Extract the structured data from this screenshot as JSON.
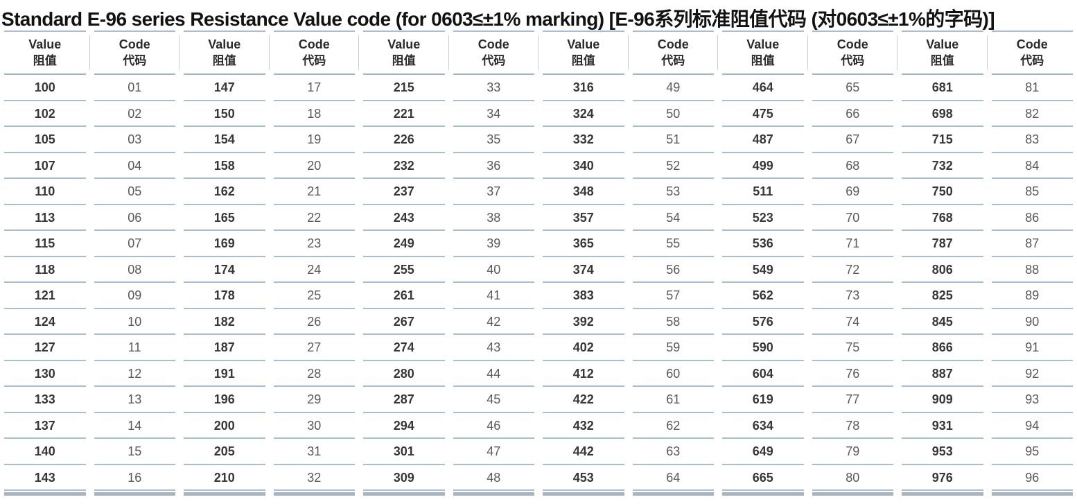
{
  "title": "Standard E-96 series Resistance Value code (for 0603≤±1% marking) [E-96系列标准阻值代码 (对0603≤±1%的字码)]",
  "column_header": {
    "value_en": "Value",
    "value_zh": "阻值",
    "code_en": "Code",
    "code_zh": "代码"
  },
  "colors": {
    "row_line": "#a6bed4",
    "header_bottom_line": "#9db6cd",
    "header_vertical_line": "#c9cdd1",
    "bottom_bar": "#a9b4c0",
    "value_text": "#373737",
    "code_text": "#595959",
    "title_text": "#121212"
  },
  "table": {
    "row_count": 16,
    "pair_count": 6,
    "pairs": [
      {
        "values": [
          "100",
          "102",
          "105",
          "107",
          "110",
          "113",
          "115",
          "118",
          "121",
          "124",
          "127",
          "130",
          "133",
          "137",
          "140",
          "143"
        ],
        "codes": [
          "01",
          "02",
          "03",
          "04",
          "05",
          "06",
          "07",
          "08",
          "09",
          "10",
          "11",
          "12",
          "13",
          "14",
          "15",
          "16"
        ]
      },
      {
        "values": [
          "147",
          "150",
          "154",
          "158",
          "162",
          "165",
          "169",
          "174",
          "178",
          "182",
          "187",
          "191",
          "196",
          "200",
          "205",
          "210"
        ],
        "codes": [
          "17",
          "18",
          "19",
          "20",
          "21",
          "22",
          "23",
          "24",
          "25",
          "26",
          "27",
          "28",
          "29",
          "30",
          "31",
          "32"
        ]
      },
      {
        "values": [
          "215",
          "221",
          "226",
          "232",
          "237",
          "243",
          "249",
          "255",
          "261",
          "267",
          "274",
          "280",
          "287",
          "294",
          "301",
          "309"
        ],
        "codes": [
          "33",
          "34",
          "35",
          "36",
          "37",
          "38",
          "39",
          "40",
          "41",
          "42",
          "43",
          "44",
          "45",
          "46",
          "47",
          "48"
        ]
      },
      {
        "values": [
          "316",
          "324",
          "332",
          "340",
          "348",
          "357",
          "365",
          "374",
          "383",
          "392",
          "402",
          "412",
          "422",
          "432",
          "442",
          "453"
        ],
        "codes": [
          "49",
          "50",
          "51",
          "52",
          "53",
          "54",
          "55",
          "56",
          "57",
          "58",
          "59",
          "60",
          "61",
          "62",
          "63",
          "64"
        ]
      },
      {
        "values": [
          "464",
          "475",
          "487",
          "499",
          "511",
          "523",
          "536",
          "549",
          "562",
          "576",
          "590",
          "604",
          "619",
          "634",
          "649",
          "665"
        ],
        "codes": [
          "65",
          "66",
          "67",
          "68",
          "69",
          "70",
          "71",
          "72",
          "73",
          "74",
          "75",
          "76",
          "77",
          "78",
          "79",
          "80"
        ]
      },
      {
        "values": [
          "681",
          "698",
          "715",
          "732",
          "750",
          "768",
          "787",
          "806",
          "825",
          "845",
          "866",
          "887",
          "909",
          "931",
          "953",
          "976"
        ],
        "codes": [
          "81",
          "82",
          "83",
          "84",
          "85",
          "86",
          "87",
          "88",
          "89",
          "90",
          "91",
          "92",
          "93",
          "94",
          "95",
          "96"
        ]
      }
    ]
  }
}
